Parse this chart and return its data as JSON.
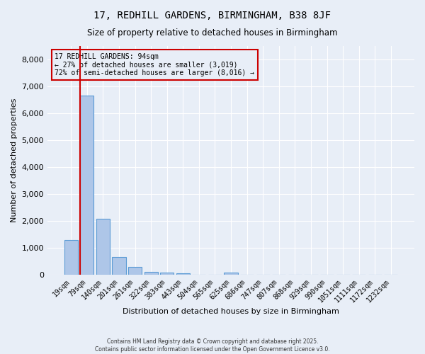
{
  "title": "17, REDHILL GARDENS, BIRMINGHAM, B38 8JF",
  "subtitle": "Size of property relative to detached houses in Birmingham",
  "xlabel": "Distribution of detached houses by size in Birmingham",
  "ylabel": "Number of detached properties",
  "bar_labels": [
    "19sqm",
    "79sqm",
    "140sqm",
    "201sqm",
    "261sqm",
    "322sqm",
    "383sqm",
    "443sqm",
    "504sqm",
    "565sqm",
    "625sqm",
    "686sqm",
    "747sqm",
    "807sqm",
    "868sqm",
    "929sqm",
    "990sqm",
    "1051sqm",
    "1111sqm",
    "1172sqm",
    "1232sqm"
  ],
  "bar_values": [
    1300,
    6650,
    2100,
    660,
    300,
    120,
    80,
    55,
    5,
    5,
    80,
    5,
    5,
    5,
    5,
    5,
    5,
    5,
    5,
    5,
    5
  ],
  "bar_color": "#aec6e8",
  "bar_edge_color": "#5b9bd5",
  "vline_color": "#cc0000",
  "annotation_text": "17 REDHILL GARDENS: 94sqm\n← 27% of detached houses are smaller (3,019)\n72% of semi-detached houses are larger (8,016) →",
  "annotation_box_color": "#cc0000",
  "ylim": [
    0,
    8500
  ],
  "yticks": [
    0,
    1000,
    2000,
    3000,
    4000,
    5000,
    6000,
    7000,
    8000
  ],
  "bg_color": "#e8eef7",
  "plot_bg_color": "#edf2f9",
  "grid_color": "#ffffff",
  "footer_line1": "Contains HM Land Registry data © Crown copyright and database right 2025.",
  "footer_line2": "Contains public sector information licensed under the Open Government Licence v3.0."
}
